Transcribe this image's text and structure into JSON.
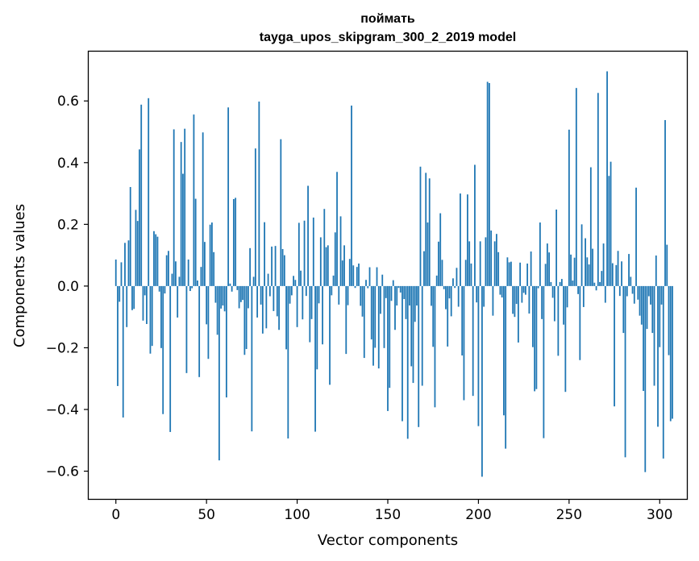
{
  "chart_data": {
    "type": "bar",
    "title": "поймать",
    "subtitle": "tayga_upos_skipgram_300_2_2019 model",
    "xlabel": "Vector components",
    "ylabel": "Components values",
    "xlim": [
      -15,
      315
    ],
    "ylim": [
      -0.69,
      0.76
    ],
    "xticks": [
      0,
      50,
      100,
      150,
      200,
      250,
      300
    ],
    "xtick_labels": [
      "0",
      "50",
      "100",
      "150",
      "200",
      "250",
      "300"
    ],
    "yticks": [
      -0.6,
      -0.4,
      -0.2,
      0.0,
      0.2,
      0.4,
      0.6
    ],
    "ytick_labels": [
      "−0.6",
      "−0.4",
      "−0.2",
      "0.0",
      "0.2",
      "0.4",
      "0.6"
    ],
    "bar_color": "#1f77b4",
    "grid": false,
    "series": [
      {
        "name": "поймать",
        "values": [
          0.086,
          -0.324,
          -0.051,
          0.077,
          -0.426,
          0.14,
          -0.133,
          0.148,
          0.321,
          -0.078,
          -0.074,
          0.247,
          0.211,
          0.443,
          0.588,
          -0.112,
          -0.03,
          -0.123,
          0.609,
          -0.219,
          -0.194,
          0.178,
          0.168,
          0.16,
          -0.018,
          -0.201,
          -0.415,
          -0.024,
          0.1,
          0.114,
          -0.473,
          0.04,
          0.508,
          0.08,
          -0.102,
          0.03,
          0.467,
          0.364,
          0.51,
          -0.282,
          0.086,
          -0.016,
          -0.007,
          0.556,
          0.283,
          0.018,
          -0.295,
          0.062,
          0.498,
          0.143,
          -0.124,
          -0.236,
          0.199,
          0.206,
          0.11,
          -0.054,
          -0.158,
          -0.565,
          -0.073,
          -0.063,
          -0.082,
          -0.361,
          0.579,
          0.008,
          -0.018,
          0.282,
          0.286,
          -0.013,
          -0.072,
          -0.052,
          -0.045,
          -0.223,
          -0.204,
          -0.072,
          0.123,
          -0.471,
          0.03,
          0.446,
          -0.102,
          0.598,
          -0.06,
          -0.154,
          0.207,
          -0.137,
          0.04,
          -0.033,
          0.128,
          -0.081,
          0.13,
          -0.098,
          -0.142,
          0.476,
          0.12,
          0.1,
          -0.205,
          -0.494,
          -0.057,
          -0.03,
          0.033,
          0.02,
          -0.133,
          0.205,
          0.05,
          -0.108,
          0.212,
          -0.032,
          0.325,
          -0.182,
          -0.107,
          0.222,
          -0.472,
          -0.27,
          -0.056,
          0.158,
          -0.189,
          0.25,
          0.126,
          0.132,
          -0.32,
          -0.03,
          0.034,
          0.174,
          0.37,
          -0.06,
          0.226,
          0.083,
          0.132,
          -0.22,
          -0.062,
          0.088,
          0.585,
          0.067,
          -0.006,
          0.062,
          0.073,
          -0.064,
          -0.099,
          -0.233,
          0.02,
          -0.007,
          0.061,
          -0.173,
          -0.258,
          -0.2,
          0.061,
          -0.267,
          -0.09,
          0.037,
          -0.201,
          -0.039,
          -0.405,
          -0.33,
          -0.048,
          0.019,
          -0.142,
          -0.063,
          -0.006,
          -0.021,
          -0.438,
          -0.042,
          -0.107,
          -0.495,
          -0.063,
          -0.26,
          -0.314,
          -0.116,
          -0.063,
          -0.457,
          0.387,
          -0.323,
          0.113,
          0.367,
          0.206,
          0.349,
          -0.064,
          -0.197,
          -0.393,
          0.034,
          0.144,
          0.236,
          0.085,
          -0.01,
          -0.075,
          -0.196,
          -0.04,
          -0.098,
          0.025,
          -0.006,
          0.059,
          -0.067,
          0.3,
          -0.225,
          -0.37,
          0.085,
          0.297,
          0.145,
          0.073,
          -0.356,
          0.393,
          -0.053,
          -0.454,
          0.145,
          -0.618,
          -0.067,
          0.158,
          0.662,
          0.658,
          0.18,
          -0.096,
          0.145,
          0.169,
          0.11,
          -0.028,
          -0.037,
          -0.419,
          -0.527,
          0.093,
          0.077,
          0.079,
          -0.09,
          -0.1,
          -0.058,
          -0.183,
          0.076,
          -0.054,
          -0.022,
          -0.028,
          0.073,
          -0.089,
          0.112,
          -0.198,
          -0.341,
          -0.334,
          -0.007,
          0.206,
          -0.107,
          -0.493,
          0.072,
          0.138,
          0.109,
          0.013,
          -0.038,
          -0.114,
          0.248,
          -0.226,
          0.013,
          0.023,
          -0.125,
          -0.343,
          -0.069,
          0.507,
          0.102,
          0.018,
          0.092,
          0.642,
          -0.026,
          -0.24,
          0.2,
          -0.068,
          0.155,
          0.093,
          0.07,
          0.385,
          0.121,
          0.011,
          -0.014,
          0.626,
          0.013,
          0.049,
          0.138,
          -0.054,
          0.696,
          0.357,
          0.403,
          0.074,
          -0.39,
          0.068,
          0.114,
          -0.032,
          0.08,
          -0.152,
          -0.555,
          -0.033,
          0.104,
          0.03,
          -0.025,
          -0.057,
          0.319,
          -0.044,
          -0.096,
          -0.125,
          -0.34,
          -0.603,
          -0.139,
          -0.033,
          -0.06,
          -0.152,
          -0.323,
          0.099,
          -0.456,
          -0.198,
          -0.06,
          -0.559,
          0.538,
          0.134,
          -0.224,
          -0.438,
          -0.43
        ]
      }
    ]
  }
}
